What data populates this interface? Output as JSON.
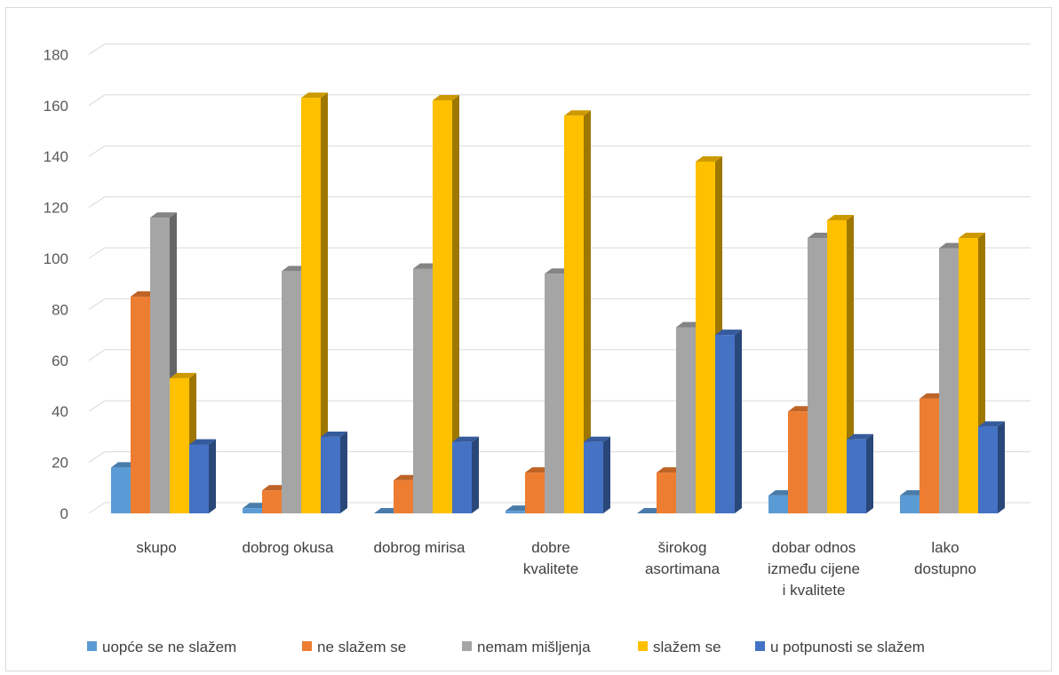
{
  "chart_data": {
    "type": "bar",
    "title": "",
    "xlabel": "",
    "ylabel": "",
    "ylim": [
      0,
      180
    ],
    "yticks": [
      0,
      20,
      40,
      60,
      80,
      100,
      120,
      140,
      160,
      180
    ],
    "grid": true,
    "legend_position": "bottom",
    "categories": [
      [
        "skupo"
      ],
      [
        "dobrog okusa"
      ],
      [
        "dobrog mirisa"
      ],
      [
        "dobre",
        "kvalitete"
      ],
      [
        "širokog",
        "asortimana"
      ],
      [
        "dobar odnos",
        "između cijene",
        "i kvalitete"
      ],
      [
        "lako",
        "dostupno"
      ]
    ],
    "series": [
      {
        "name": "uopće se ne slažem",
        "color": "#5B9BD5",
        "values": [
          18,
          2,
          0,
          1,
          0,
          7,
          7
        ]
      },
      {
        "name": "ne slažem se",
        "color": "#ED7D31",
        "values": [
          85,
          9,
          13,
          16,
          16,
          40,
          45
        ]
      },
      {
        "name": "nemam mišljenja",
        "color": "#A5A5A5",
        "values": [
          116,
          95,
          96,
          94,
          73,
          108,
          104
        ]
      },
      {
        "name": "slažem se",
        "color": "#FFC000",
        "values": [
          53,
          163,
          162,
          156,
          138,
          115,
          108
        ]
      },
      {
        "name": "u potpunosti se slažem",
        "color": "#4472C4",
        "values": [
          27,
          30,
          28,
          28,
          70,
          29,
          34
        ]
      }
    ]
  }
}
